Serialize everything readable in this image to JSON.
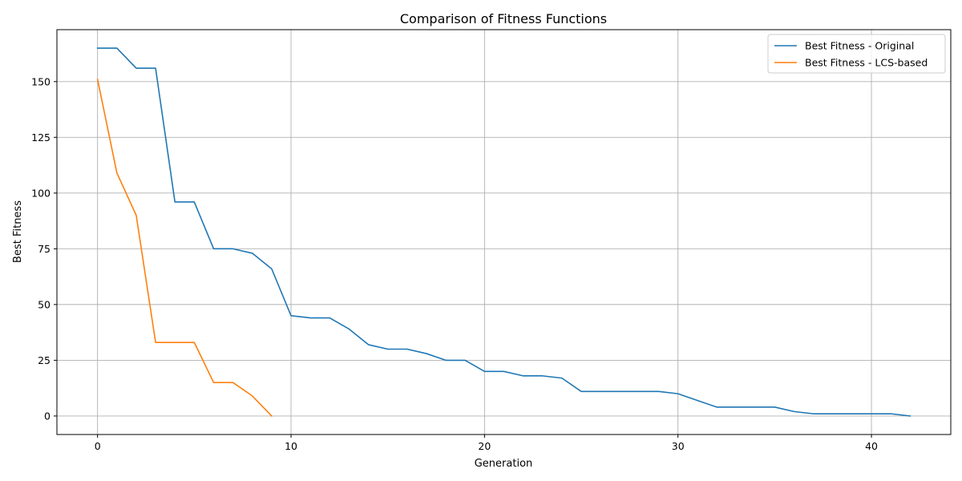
{
  "chart_data": {
    "type": "line",
    "title": "Comparison of Fitness Functions",
    "xlabel": "Generation",
    "ylabel": "Best Fitness",
    "xlim": [
      -2.1,
      44.1
    ],
    "ylim": [
      -8.3,
      173.3
    ],
    "xticks": [
      0,
      10,
      20,
      30,
      40
    ],
    "yticks": [
      0,
      25,
      50,
      75,
      100,
      125,
      150
    ],
    "grid": true,
    "legend_position": "top-right",
    "series": [
      {
        "name": "Best Fitness - Original",
        "color": "#1f77b4",
        "x": [
          0,
          1,
          2,
          3,
          4,
          5,
          6,
          7,
          8,
          9,
          10,
          11,
          12,
          13,
          14,
          15,
          16,
          17,
          18,
          19,
          20,
          21,
          22,
          23,
          24,
          25,
          26,
          27,
          28,
          29,
          30,
          31,
          32,
          33,
          34,
          35,
          36,
          37,
          38,
          39,
          40,
          41,
          42
        ],
        "values": [
          165,
          165,
          156,
          156,
          96,
          96,
          75,
          75,
          73,
          66,
          45,
          44,
          44,
          39,
          32,
          30,
          30,
          28,
          25,
          25,
          20,
          20,
          18,
          18,
          17,
          11,
          11,
          11,
          11,
          11,
          10,
          7,
          4,
          4,
          4,
          4,
          2,
          1,
          1,
          1,
          1,
          1,
          0
        ]
      },
      {
        "name": "Best Fitness - LCS-based",
        "color": "#ff7f0e",
        "x": [
          0,
          1,
          2,
          3,
          4,
          5,
          6,
          7,
          8,
          9
        ],
        "values": [
          151,
          109,
          90,
          33,
          33,
          33,
          15,
          15,
          9,
          0
        ]
      }
    ]
  }
}
